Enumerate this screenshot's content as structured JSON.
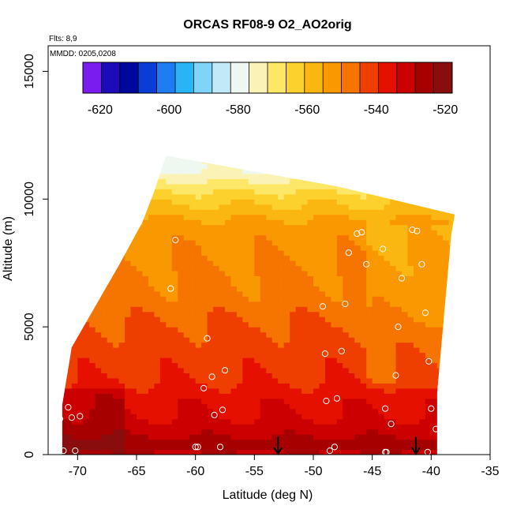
{
  "chart_data": {
    "type": "heatmap",
    "title": "ORCAS RF08-9 O2_AO2orig",
    "notes": [
      "Flts: 8,9",
      "MMDD: 0205,0208"
    ],
    "xlabel": "Latitude (deg N)",
    "ylabel": "Altitude (m)",
    "xlim": [
      -72.5,
      -35
    ],
    "ylim": [
      0,
      16000
    ],
    "xticks": [
      -70,
      -65,
      -60,
      -55,
      -50,
      -45,
      -40,
      -35
    ],
    "yticks": [
      0,
      5000,
      10000,
      15000
    ],
    "colorbar": {
      "min": -625,
      "max": -518,
      "ticks": [
        -620,
        -600,
        -580,
        -560,
        -540,
        -520
      ],
      "colors": [
        "#7a1cf0",
        "#1d0ab8",
        "#00089c",
        "#0a3cd6",
        "#1f7df2",
        "#29b4f5",
        "#7fd4f7",
        "#c2e9f8",
        "#eef8f0",
        "#fbf3b5",
        "#fde766",
        "#fdd12d",
        "#fbb711",
        "#f99800",
        "#f57500",
        "#ef3f00",
        "#e51000",
        "#cc0000",
        "#a60000",
        "#8a0d0d"
      ]
    },
    "field": {
      "band_altitudes": [
        0,
        400,
        800,
        1500,
        2200,
        3000,
        4000,
        5000,
        6000,
        7500,
        9000,
        10200,
        11200
      ],
      "band_values": [
        -530,
        -525,
        -530,
        -534,
        -536,
        -540,
        -542,
        -544,
        -548,
        -550,
        -553,
        -565,
        -578
      ],
      "surface_low_lat": [
        -71.3,
        -70.5
      ],
      "upper_right_edge": [
        [
          -62.5,
          11700
        ],
        [
          -48,
          10500
        ],
        [
          -38,
          9400
        ]
      ]
    },
    "arrows": [
      {
        "lat": -53,
        "alt_top": 700
      },
      {
        "lat": -41.3,
        "alt_top": 700
      }
    ],
    "points": [
      {
        "x": -71.2,
        "y": 150
      },
      {
        "x": -70.2,
        "y": 150
      },
      {
        "x": -70.8,
        "y": 1850
      },
      {
        "x": -70.5,
        "y": 1450
      },
      {
        "x": -69.8,
        "y": 1500
      },
      {
        "x": -71.5,
        "y": 1400
      },
      {
        "x": -61.7,
        "y": 8400
      },
      {
        "x": -62.1,
        "y": 6500
      },
      {
        "x": -59.0,
        "y": 4550
      },
      {
        "x": -58.6,
        "y": 3050
      },
      {
        "x": -57.5,
        "y": 3300
      },
      {
        "x": -59.3,
        "y": 2600
      },
      {
        "x": -58.4,
        "y": 1550
      },
      {
        "x": -57.7,
        "y": 1750
      },
      {
        "x": -60.0,
        "y": 300
      },
      {
        "x": -59.8,
        "y": 300
      },
      {
        "x": -57.9,
        "y": 300
      },
      {
        "x": -49.2,
        "y": 5800
      },
      {
        "x": -47.3,
        "y": 5900
      },
      {
        "x": -46.3,
        "y": 8650
      },
      {
        "x": -45.9,
        "y": 8700
      },
      {
        "x": -47.0,
        "y": 7900
      },
      {
        "x": -45.5,
        "y": 7450
      },
      {
        "x": -44.1,
        "y": 8050
      },
      {
        "x": -42.5,
        "y": 6900
      },
      {
        "x": -41.6,
        "y": 8800
      },
      {
        "x": -41.2,
        "y": 8750
      },
      {
        "x": -40.8,
        "y": 7450
      },
      {
        "x": -40.5,
        "y": 5550
      },
      {
        "x": -42.8,
        "y": 5000
      },
      {
        "x": -40.2,
        "y": 3650
      },
      {
        "x": -43.0,
        "y": 3100
      },
      {
        "x": -49.0,
        "y": 3950
      },
      {
        "x": -47.6,
        "y": 4050
      },
      {
        "x": -48.9,
        "y": 2100
      },
      {
        "x": -48.0,
        "y": 2200
      },
      {
        "x": -43.9,
        "y": 1800
      },
      {
        "x": -43.4,
        "y": 1200
      },
      {
        "x": -40.0,
        "y": 1800
      },
      {
        "x": -39.6,
        "y": 1000
      },
      {
        "x": -48.6,
        "y": 150
      },
      {
        "x": -48.2,
        "y": 300
      },
      {
        "x": -43.9,
        "y": 100
      },
      {
        "x": -43.8,
        "y": 100
      },
      {
        "x": -40.3,
        "y": 100
      }
    ]
  }
}
